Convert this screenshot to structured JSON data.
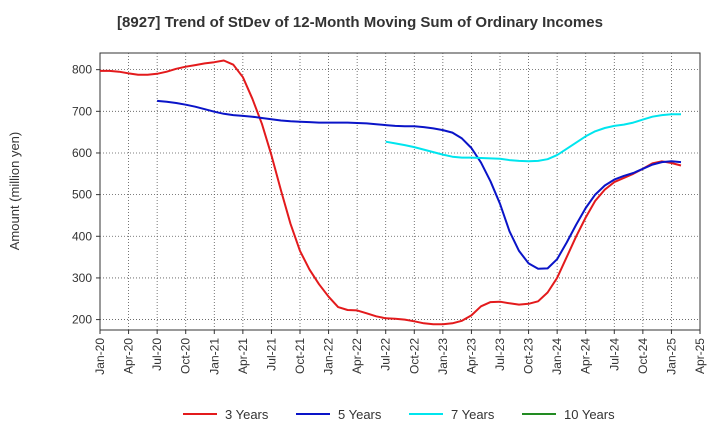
{
  "chart_data": {
    "type": "line",
    "title": "[8927]  Trend of StDev of 12-Month Moving Sum of Ordinary Incomes",
    "ylabel": "Amount (million yen)",
    "xlabel": "",
    "ylim": [
      175,
      840
    ],
    "yticks": [
      200,
      300,
      400,
      500,
      600,
      700,
      800
    ],
    "x_tick_labels": [
      "Jan-20",
      "Apr-20",
      "Jul-20",
      "Oct-20",
      "Jan-21",
      "Apr-21",
      "Jul-21",
      "Oct-21",
      "Jan-22",
      "Apr-22",
      "Jul-22",
      "Oct-22",
      "Jan-23",
      "Apr-23",
      "Jul-23",
      "Oct-23",
      "Jan-24",
      "Apr-24",
      "Jul-24",
      "Oct-24",
      "Jan-25",
      "Apr-25"
    ],
    "grid": true,
    "legend_position": "bottom",
    "series": [
      {
        "name": "3 Years",
        "color": "#e31a1c",
        "points": [
          [
            "2020-01",
            797
          ],
          [
            "2020-02",
            797
          ],
          [
            "2020-03",
            795
          ],
          [
            "2020-04",
            791
          ],
          [
            "2020-05",
            788
          ],
          [
            "2020-06",
            788
          ],
          [
            "2020-07",
            790
          ],
          [
            "2020-08",
            795
          ],
          [
            "2020-09",
            802
          ],
          [
            "2020-10",
            807
          ],
          [
            "2020-11",
            811
          ],
          [
            "2020-12",
            815
          ],
          [
            "2021-01",
            818
          ],
          [
            "2021-02",
            822
          ],
          [
            "2021-03",
            812
          ],
          [
            "2021-04",
            782
          ],
          [
            "2021-05",
            730
          ],
          [
            "2021-06",
            670
          ],
          [
            "2021-07",
            595
          ],
          [
            "2021-08",
            510
          ],
          [
            "2021-09",
            430
          ],
          [
            "2021-10",
            365
          ],
          [
            "2021-11",
            320
          ],
          [
            "2021-12",
            285
          ],
          [
            "2022-01",
            255
          ],
          [
            "2022-02",
            230
          ],
          [
            "2022-03",
            223
          ],
          [
            "2022-04",
            222
          ],
          [
            "2022-05",
            215
          ],
          [
            "2022-06",
            208
          ],
          [
            "2022-07",
            203
          ],
          [
            "2022-08",
            202
          ],
          [
            "2022-09",
            200
          ],
          [
            "2022-10",
            196
          ],
          [
            "2022-11",
            191
          ],
          [
            "2022-12",
            189
          ],
          [
            "2023-01",
            189
          ],
          [
            "2023-02",
            191
          ],
          [
            "2023-03",
            197
          ],
          [
            "2023-04",
            210
          ],
          [
            "2023-05",
            232
          ],
          [
            "2023-06",
            242
          ],
          [
            "2023-07",
            243
          ],
          [
            "2023-08",
            239
          ],
          [
            "2023-09",
            236
          ],
          [
            "2023-10",
            238
          ],
          [
            "2023-11",
            244
          ],
          [
            "2023-12",
            265
          ],
          [
            "2024-01",
            300
          ],
          [
            "2024-02",
            350
          ],
          [
            "2024-03",
            400
          ],
          [
            "2024-04",
            445
          ],
          [
            "2024-05",
            485
          ],
          [
            "2024-06",
            512
          ],
          [
            "2024-07",
            530
          ],
          [
            "2024-08",
            540
          ],
          [
            "2024-09",
            550
          ],
          [
            "2024-10",
            562
          ],
          [
            "2024-11",
            575
          ],
          [
            "2024-12",
            580
          ],
          [
            "2025-01",
            576
          ],
          [
            "2025-02",
            570
          ]
        ]
      },
      {
        "name": "5 Years",
        "color": "#0a14c8",
        "points": [
          [
            "2020-07",
            725
          ],
          [
            "2020-08",
            723
          ],
          [
            "2020-09",
            720
          ],
          [
            "2020-10",
            716
          ],
          [
            "2020-11",
            711
          ],
          [
            "2020-12",
            705
          ],
          [
            "2021-01",
            699
          ],
          [
            "2021-02",
            694
          ],
          [
            "2021-03",
            691
          ],
          [
            "2021-04",
            689
          ],
          [
            "2021-05",
            687
          ],
          [
            "2021-06",
            684
          ],
          [
            "2021-07",
            681
          ],
          [
            "2021-08",
            678
          ],
          [
            "2021-09",
            676
          ],
          [
            "2021-10",
            675
          ],
          [
            "2021-11",
            674
          ],
          [
            "2021-12",
            673
          ],
          [
            "2022-01",
            673
          ],
          [
            "2022-02",
            673
          ],
          [
            "2022-03",
            673
          ],
          [
            "2022-04",
            672
          ],
          [
            "2022-05",
            671
          ],
          [
            "2022-06",
            669
          ],
          [
            "2022-07",
            667
          ],
          [
            "2022-08",
            665
          ],
          [
            "2022-09",
            664
          ],
          [
            "2022-10",
            664
          ],
          [
            "2022-11",
            662
          ],
          [
            "2022-12",
            659
          ],
          [
            "2023-01",
            655
          ],
          [
            "2023-02",
            649
          ],
          [
            "2023-03",
            635
          ],
          [
            "2023-04",
            612
          ],
          [
            "2023-05",
            577
          ],
          [
            "2023-06",
            532
          ],
          [
            "2023-07",
            478
          ],
          [
            "2023-08",
            412
          ],
          [
            "2023-09",
            365
          ],
          [
            "2023-10",
            335
          ],
          [
            "2023-11",
            322
          ],
          [
            "2023-12",
            323
          ],
          [
            "2024-01",
            345
          ],
          [
            "2024-02",
            385
          ],
          [
            "2024-03",
            428
          ],
          [
            "2024-04",
            468
          ],
          [
            "2024-05",
            500
          ],
          [
            "2024-06",
            522
          ],
          [
            "2024-07",
            536
          ],
          [
            "2024-08",
            545
          ],
          [
            "2024-09",
            552
          ],
          [
            "2024-10",
            562
          ],
          [
            "2024-11",
            572
          ],
          [
            "2024-12",
            578
          ],
          [
            "2025-01",
            580
          ],
          [
            "2025-02",
            578
          ]
        ]
      },
      {
        "name": "7 Years",
        "color": "#00e5ee",
        "points": [
          [
            "2022-07",
            627
          ],
          [
            "2022-08",
            623
          ],
          [
            "2022-09",
            619
          ],
          [
            "2022-10",
            614
          ],
          [
            "2022-11",
            608
          ],
          [
            "2022-12",
            602
          ],
          [
            "2023-01",
            596
          ],
          [
            "2023-02",
            591
          ],
          [
            "2023-03",
            589
          ],
          [
            "2023-04",
            589
          ],
          [
            "2023-05",
            588
          ],
          [
            "2023-06",
            587
          ],
          [
            "2023-07",
            586
          ],
          [
            "2023-08",
            583
          ],
          [
            "2023-09",
            581
          ],
          [
            "2023-10",
            580
          ],
          [
            "2023-11",
            581
          ],
          [
            "2023-12",
            585
          ],
          [
            "2024-01",
            595
          ],
          [
            "2024-02",
            610
          ],
          [
            "2024-03",
            625
          ],
          [
            "2024-04",
            640
          ],
          [
            "2024-05",
            652
          ],
          [
            "2024-06",
            660
          ],
          [
            "2024-07",
            665
          ],
          [
            "2024-08",
            668
          ],
          [
            "2024-09",
            673
          ],
          [
            "2024-10",
            680
          ],
          [
            "2024-11",
            687
          ],
          [
            "2024-12",
            691
          ],
          [
            "2025-01",
            693
          ],
          [
            "2025-02",
            693
          ]
        ]
      },
      {
        "name": "10 Years",
        "color": "#228b22",
        "points": []
      }
    ]
  }
}
